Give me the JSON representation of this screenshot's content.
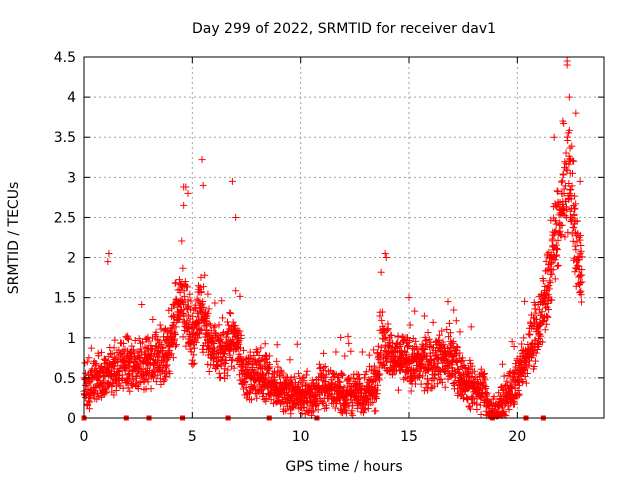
{
  "chart_data": {
    "type": "scatter",
    "title": "Day 299 of 2022, SRMTID for receiver dav1",
    "xlabel": "GPS time / hours",
    "ylabel": "SRMTID / TECUs",
    "xlim": [
      0,
      24
    ],
    "ylim": [
      0,
      4.5
    ],
    "xticks": [
      0,
      5,
      10,
      15,
      20
    ],
    "yticks": [
      0,
      0.5,
      1,
      1.5,
      2,
      2.5,
      3,
      3.5,
      4,
      4.5
    ],
    "grid": true,
    "marker": "+",
    "series": [
      {
        "name": "SRMTID",
        "color": "#ff0000",
        "trend": [
          [
            0.0,
            0.4
          ],
          [
            0.5,
            0.45
          ],
          [
            1.0,
            0.55
          ],
          [
            1.5,
            0.65
          ],
          [
            2.0,
            0.65
          ],
          [
            2.5,
            0.7
          ],
          [
            3.0,
            0.7
          ],
          [
            3.5,
            0.75
          ],
          [
            4.0,
            0.9
          ],
          [
            4.4,
            1.5
          ],
          [
            4.7,
            1.3
          ],
          [
            5.0,
            1.0
          ],
          [
            5.4,
            1.4
          ],
          [
            5.8,
            0.9
          ],
          [
            6.2,
            0.8
          ],
          [
            6.6,
            0.9
          ],
          [
            7.0,
            1.0
          ],
          [
            7.4,
            0.5
          ],
          [
            8.0,
            0.55
          ],
          [
            8.5,
            0.5
          ],
          [
            9.0,
            0.35
          ],
          [
            9.5,
            0.35
          ],
          [
            10.0,
            0.3
          ],
          [
            10.5,
            0.25
          ],
          [
            11.0,
            0.4
          ],
          [
            11.5,
            0.35
          ],
          [
            12.0,
            0.3
          ],
          [
            12.5,
            0.3
          ],
          [
            13.0,
            0.35
          ],
          [
            13.5,
            0.4
          ],
          [
            13.8,
            1.0
          ],
          [
            14.2,
            0.7
          ],
          [
            15.0,
            0.7
          ],
          [
            16.0,
            0.7
          ],
          [
            16.5,
            0.75
          ],
          [
            17.0,
            0.7
          ],
          [
            17.5,
            0.45
          ],
          [
            18.0,
            0.4
          ],
          [
            18.5,
            0.3
          ],
          [
            18.8,
            0.05
          ],
          [
            19.2,
            0.1
          ],
          [
            19.6,
            0.3
          ],
          [
            20.0,
            0.5
          ],
          [
            20.5,
            0.8
          ],
          [
            21.0,
            1.2
          ],
          [
            21.5,
            1.8
          ],
          [
            22.0,
            2.6
          ],
          [
            22.4,
            3.0
          ],
          [
            22.8,
            2.0
          ],
          [
            23.0,
            1.7
          ]
        ],
        "spread": 0.45,
        "zero_markers_x": [
          0.0,
          1.95,
          3.0,
          4.55,
          6.65,
          8.55,
          10.75,
          18.85,
          20.4,
          21.2
        ],
        "outliers": [
          [
            22.3,
            4.45
          ],
          [
            22.3,
            4.4
          ],
          [
            22.4,
            4.0
          ],
          [
            22.1,
            3.7
          ],
          [
            22.7,
            3.8
          ],
          [
            5.45,
            3.22
          ],
          [
            6.85,
            2.95
          ],
          [
            5.5,
            2.9
          ],
          [
            4.6,
            2.88
          ],
          [
            4.7,
            2.88
          ],
          [
            4.8,
            2.8
          ],
          [
            4.6,
            2.65
          ],
          [
            1.15,
            2.05
          ],
          [
            1.1,
            1.95
          ],
          [
            13.9,
            2.05
          ],
          [
            13.95,
            2.0
          ],
          [
            7.0,
            2.5
          ],
          [
            15.0,
            1.5
          ],
          [
            16.8,
            1.45
          ],
          [
            21.7,
            3.5
          ],
          [
            22.6,
            3.2
          ],
          [
            22.9,
            2.95
          ]
        ]
      }
    ]
  }
}
